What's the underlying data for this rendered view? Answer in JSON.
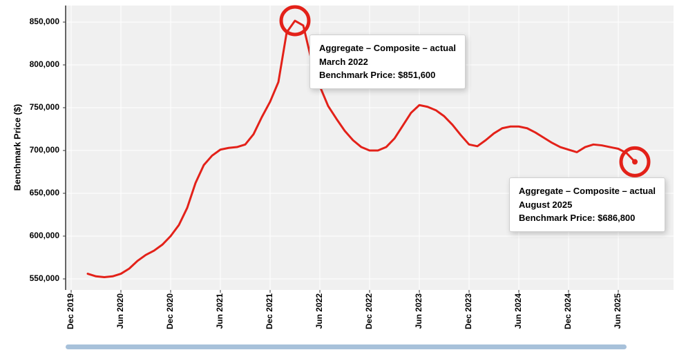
{
  "chart_data": {
    "type": "line",
    "title": "",
    "xlabel": "",
    "ylabel": "Benchmark Price ($)",
    "series_name": "Aggregate – Composite – actual",
    "frequency": "monthly",
    "x": {
      "start": "Feb 2020",
      "end": "Aug 2025",
      "step": "1 month"
    },
    "x_axis_origin_label": "Dec 2019",
    "x_start_offset_months": 2,
    "xtick_labels": [
      "Dec 2019",
      "Jun 2020",
      "Dec 2020",
      "Jun 2021",
      "Dec 2021",
      "Jun 2022",
      "Dec 2022",
      "Jun 2023",
      "Dec 2023",
      "Jun 2024",
      "Dec 2024",
      "Jun 2025"
    ],
    "yticks": [
      550000,
      600000,
      650000,
      700000,
      750000,
      800000,
      850000
    ],
    "ytick_labels": [
      "550,000",
      "600,000",
      "650,000",
      "700,000",
      "750,000",
      "800,000",
      "850,000"
    ],
    "ylim": [
      540000,
      862000
    ],
    "grid": true,
    "legend": "none",
    "values": [
      556000,
      553000,
      552000,
      553000,
      556000,
      562000,
      571000,
      578000,
      583000,
      590000,
      600000,
      613000,
      633000,
      662000,
      683000,
      694000,
      701000,
      703000,
      704000,
      707000,
      719000,
      739000,
      757000,
      780000,
      838000,
      851600,
      846000,
      805000,
      775000,
      752000,
      737000,
      723000,
      712000,
      704000,
      700000,
      700000,
      704000,
      714000,
      729000,
      744000,
      753000,
      751000,
      747000,
      740000,
      730000,
      718000,
      707000,
      705000,
      712000,
      720000,
      726000,
      728000,
      728000,
      726000,
      721000,
      715000,
      709000,
      704000,
      701000,
      698000,
      704000,
      707000,
      706000,
      704000,
      702000,
      697000,
      686800
    ],
    "annotations": [
      {
        "point_index": 25,
        "value": 851600,
        "series_label": "Aggregate – Composite – actual",
        "date_label": "March 2022",
        "price_label": "Benchmark Price: $851,600"
      },
      {
        "point_index": 66,
        "value": 686800,
        "series_label": "Aggregate – Composite – actual",
        "date_label": "August 2025",
        "price_label": "Benchmark Price: $686,800"
      }
    ],
    "colors": {
      "line": "#e32119",
      "plot_bg": "#f0f0f0",
      "grid": "#ffffff",
      "axis": "#333333",
      "scrollbar": "#a7c1da"
    }
  }
}
